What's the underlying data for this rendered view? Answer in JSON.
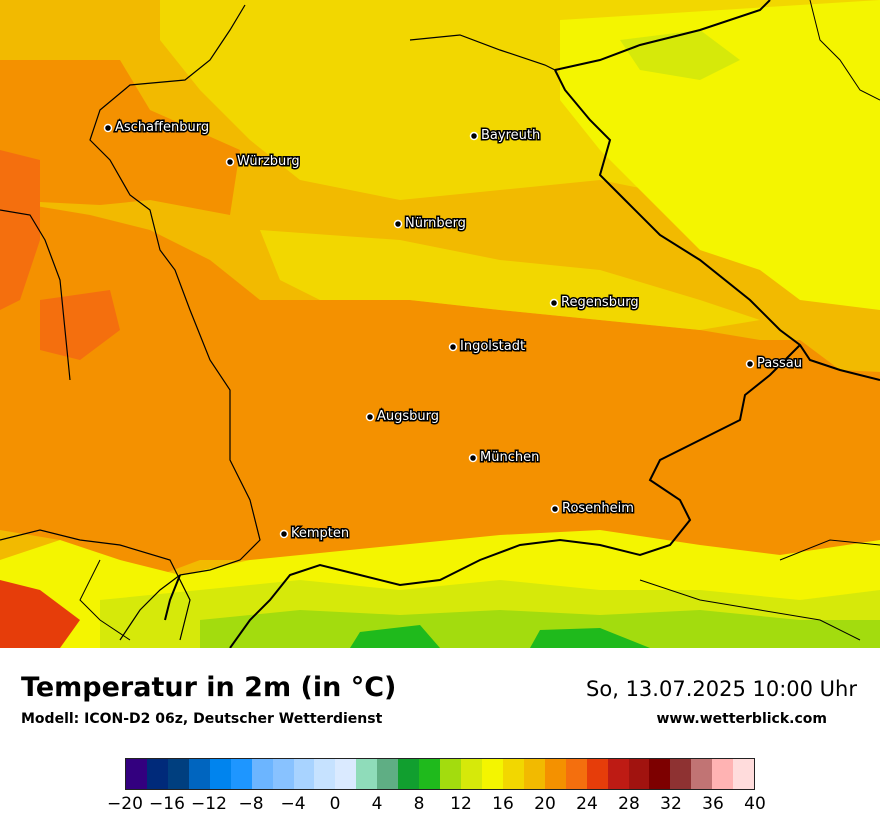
{
  "title": "Temperatur in 2m (in °C)",
  "subtitle": "Modell: ICON-D2 06z, Deutscher Wetterdienst",
  "datetime": "So, 13.07.2025 10:00 Uhr",
  "website": "www.wetterblick.com",
  "cities": [
    {
      "name": "Aschaffenburg"
    },
    {
      "name": "Würzburg"
    },
    {
      "name": "Bayreuth"
    },
    {
      "name": "Nürnberg"
    },
    {
      "name": "Regensburg"
    },
    {
      "name": "Ingolstadt"
    },
    {
      "name": "Passau"
    },
    {
      "name": "Augsburg"
    },
    {
      "name": "München"
    },
    {
      "name": "Rosenheim"
    },
    {
      "name": "Kempten"
    }
  ],
  "colorscale": {
    "colors": [
      "#33007f",
      "#002a7a",
      "#003f7f",
      "#0065bf",
      "#0084ee",
      "#1e96ff",
      "#6cb5ff",
      "#88c2ff",
      "#a8d3ff",
      "#c6e2ff",
      "#daeaff",
      "#8fdcba",
      "#5fae84",
      "#119f2f",
      "#1fba1c",
      "#a3dc0e",
      "#d6e90a",
      "#f4f500",
      "#f2d700",
      "#f2ba00",
      "#f49100",
      "#f46f0e",
      "#e63d0a",
      "#be1b14",
      "#a1130f",
      "#7d0000",
      "#8e3232",
      "#c17474",
      "#ffb3b3",
      "#ffdcdc"
    ],
    "ticks": [
      "−20",
      "−16",
      "−12",
      "−8",
      "−4",
      "0",
      "4",
      "8",
      "12",
      "16",
      "20",
      "24",
      "28",
      "32",
      "36",
      "40"
    ]
  }
}
